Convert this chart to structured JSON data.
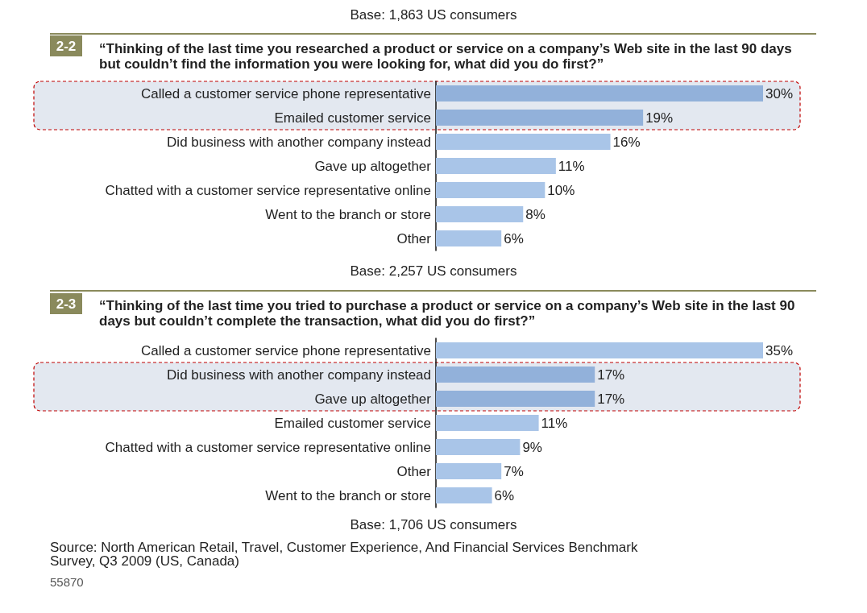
{
  "chart_data": [
    {
      "type": "bar",
      "orientation": "horizontal",
      "title": "“Thinking of the last time you researched a product or service on a company’s Web site in the last 90 days but couldn’t find the information you were looking for, what did you do first?”",
      "categories": [
        "Called a customer service phone representative",
        "Emailed customer service",
        "Did business with another company instead",
        "Gave up altogether",
        "Chatted with a customer service representative online",
        "Went to the branch or store",
        "Other"
      ],
      "values": [
        30,
        19,
        16,
        11,
        10,
        8,
        6
      ],
      "value_labels": [
        "30%",
        "19%",
        "16%",
        "11%",
        "10%",
        "8%",
        "6%"
      ],
      "colors": [
        "#92b1da",
        "#92b1da",
        "#a9c5e8",
        "#a9c5e8",
        "#a9c5e8",
        "#a9c5e8",
        "#a9c5e8"
      ],
      "bands": [
        {
          "axis": "y",
          "from": "Called a customer service phone representative",
          "to": "Emailed customer service",
          "color": "#e3e8f0"
        }
      ],
      "annotations": [
        "Base: 1,863 US consumers",
        "2-2",
        "Base: 2,257 US consumers"
      ]
    },
    {
      "type": "bar",
      "orientation": "horizontal",
      "title": "“Thinking of the last time you tried to purchase a product or service on a company’s Web site in the last 90 days but couldn’t complete the transaction, what did you do first?”",
      "categories": [
        "Called a customer service phone representative",
        "Did business with another company instead",
        "Gave up altogether",
        "Emailed customer service",
        "Chatted with a customer service representative online",
        "Other",
        "Went to the branch or store"
      ],
      "values": [
        35,
        17,
        17,
        11,
        9,
        7,
        6
      ],
      "value_labels": [
        "35%",
        "17%",
        "17%",
        "11%",
        "9%",
        "7%",
        "6%"
      ],
      "colors": [
        "#a9c5e8",
        "#92b1da",
        "#92b1da",
        "#a9c5e8",
        "#a9c5e8",
        "#a9c5e8",
        "#a9c5e8"
      ],
      "bands": [
        {
          "axis": "y",
          "from": "Did business with another company instead",
          "to": "Gave up altogether",
          "color": "#e3e8f0"
        }
      ],
      "annotations": [
        "2-3",
        "Base: 1,706 US consumers",
        "Source: North American Retail, Travel, Customer Experience, And Financial Services Benchmark Survey, Q3 2009 (US, Canada)",
        "55870"
      ]
    }
  ]
}
